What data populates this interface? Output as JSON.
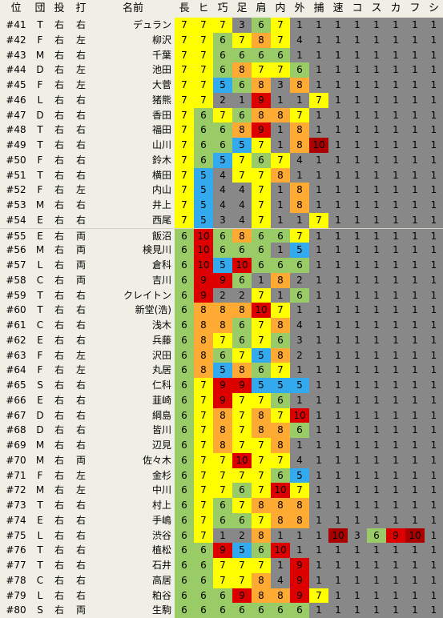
{
  "headers": [
    "位",
    "団",
    "投",
    "打",
    "名前",
    "長",
    "ヒ",
    "巧",
    "足",
    "肩",
    "内",
    "外",
    "捕",
    "速",
    "コ",
    "ス",
    "カ",
    "フ",
    "シ"
  ],
  "colors": {
    "yellow": "#ffff00",
    "green": "#99cc66",
    "blue": "#33aaee",
    "red": "#dd0000",
    "orange": "#ffaa33",
    "gray": "#888888",
    "darkred": "#aa0000",
    "bg": "#f0efe6"
  },
  "players": [
    {
      "no": "#41",
      "team": "T",
      "throws": "右",
      "bats": "右",
      "name": "デュラン",
      "stats": [
        "7",
        "7",
        "7",
        "3",
        "6",
        "7",
        "1",
        "1",
        "1",
        "1",
        "1",
        "1",
        "1",
        "1"
      ]
    },
    {
      "no": "#42",
      "team": "F",
      "throws": "右",
      "bats": "左",
      "name": "柳沢",
      "stats": [
        "7",
        "7",
        "6",
        "7",
        "8",
        "7",
        "4",
        "1",
        "1",
        "1",
        "1",
        "1",
        "1",
        "1"
      ]
    },
    {
      "no": "#43",
      "team": "M",
      "throws": "右",
      "bats": "右",
      "name": "千葉",
      "stats": [
        "7",
        "7",
        "6",
        "6",
        "6",
        "6",
        "1",
        "1",
        "1",
        "1",
        "1",
        "1",
        "1",
        "1"
      ]
    },
    {
      "no": "#44",
      "team": "D",
      "throws": "右",
      "bats": "左",
      "name": "池田",
      "stats": [
        "7",
        "7",
        "6",
        "8",
        "7",
        "7",
        "6",
        "1",
        "1",
        "1",
        "1",
        "1",
        "1",
        "1"
      ]
    },
    {
      "no": "#45",
      "team": "F",
      "throws": "右",
      "bats": "左",
      "name": "大菅",
      "stats": [
        "7",
        "7",
        "5",
        "6",
        "8",
        "3",
        "8",
        "1",
        "1",
        "1",
        "1",
        "1",
        "1",
        "1"
      ]
    },
    {
      "no": "#46",
      "team": "L",
      "throws": "右",
      "bats": "右",
      "name": "猪熊",
      "stats": [
        "7",
        "7",
        "2",
        "1",
        "9",
        "1",
        "1",
        "7",
        "1",
        "1",
        "1",
        "1",
        "1",
        "1"
      ]
    },
    {
      "no": "#47",
      "team": "D",
      "throws": "右",
      "bats": "右",
      "name": "香田",
      "stats": [
        "7",
        "6",
        "7",
        "6",
        "8",
        "8",
        "7",
        "1",
        "1",
        "1",
        "1",
        "1",
        "1",
        "1"
      ]
    },
    {
      "no": "#48",
      "team": "T",
      "throws": "右",
      "bats": "右",
      "name": "福田",
      "stats": [
        "7",
        "6",
        "6",
        "8",
        "9",
        "1",
        "8",
        "1",
        "1",
        "1",
        "1",
        "1",
        "1",
        "1"
      ]
    },
    {
      "no": "#49",
      "team": "T",
      "throws": "右",
      "bats": "右",
      "name": "山川",
      "stats": [
        "7",
        "6",
        "6",
        "5",
        "7",
        "1",
        "8",
        "10",
        "1",
        "1",
        "1",
        "1",
        "1",
        "1"
      ]
    },
    {
      "no": "#50",
      "team": "F",
      "throws": "右",
      "bats": "右",
      "name": "鈴木",
      "stats": [
        "7",
        "6",
        "5",
        "7",
        "6",
        "7",
        "4",
        "1",
        "1",
        "1",
        "1",
        "1",
        "1",
        "1"
      ]
    },
    {
      "no": "#51",
      "team": "T",
      "throws": "右",
      "bats": "右",
      "name": "横田",
      "stats": [
        "7",
        "5",
        "4",
        "7",
        "7",
        "8",
        "1",
        "1",
        "1",
        "1",
        "1",
        "1",
        "1",
        "1"
      ]
    },
    {
      "no": "#52",
      "team": "F",
      "throws": "右",
      "bats": "左",
      "name": "内山",
      "stats": [
        "7",
        "5",
        "4",
        "4",
        "7",
        "1",
        "8",
        "1",
        "1",
        "1",
        "1",
        "1",
        "1",
        "1"
      ]
    },
    {
      "no": "#53",
      "team": "M",
      "throws": "右",
      "bats": "右",
      "name": "井上",
      "stats": [
        "7",
        "5",
        "4",
        "4",
        "7",
        "1",
        "8",
        "1",
        "1",
        "1",
        "1",
        "1",
        "1",
        "1"
      ]
    },
    {
      "no": "#54",
      "team": "E",
      "throws": "右",
      "bats": "右",
      "name": "西尾",
      "stats": [
        "7",
        "5",
        "3",
        "4",
        "7",
        "1",
        "1",
        "7",
        "1",
        "1",
        "1",
        "1",
        "1",
        "1"
      ]
    },
    {
      "no": "#55",
      "team": "E",
      "throws": "右",
      "bats": "両",
      "name": "飯沼",
      "stats": [
        "6",
        "10",
        "6",
        "8",
        "6",
        "6",
        "7",
        "1",
        "1",
        "1",
        "1",
        "1",
        "1",
        "1"
      ]
    },
    {
      "no": "#56",
      "team": "M",
      "throws": "右",
      "bats": "両",
      "name": "検見川",
      "stats": [
        "6",
        "10",
        "6",
        "6",
        "6",
        "1",
        "5",
        "1",
        "1",
        "1",
        "1",
        "1",
        "1",
        "1"
      ]
    },
    {
      "no": "#57",
      "team": "L",
      "throws": "右",
      "bats": "両",
      "name": "倉科",
      "stats": [
        "6",
        "10",
        "5",
        "10",
        "6",
        "6",
        "6",
        "1",
        "1",
        "1",
        "1",
        "1",
        "1",
        "1"
      ]
    },
    {
      "no": "#58",
      "team": "C",
      "throws": "右",
      "bats": "両",
      "name": "吉川",
      "stats": [
        "6",
        "9",
        "9",
        "6",
        "1",
        "8",
        "2",
        "1",
        "1",
        "1",
        "1",
        "1",
        "1",
        "1"
      ]
    },
    {
      "no": "#59",
      "team": "T",
      "throws": "右",
      "bats": "右",
      "name": "クレイトン",
      "stats": [
        "6",
        "9",
        "2",
        "2",
        "7",
        "1",
        "6",
        "1",
        "1",
        "1",
        "1",
        "1",
        "1",
        "1"
      ]
    },
    {
      "no": "#60",
      "team": "T",
      "throws": "右",
      "bats": "右",
      "name": "新堂(浩)",
      "stats": [
        "6",
        "8",
        "8",
        "8",
        "10",
        "7",
        "1",
        "1",
        "1",
        "1",
        "1",
        "1",
        "1",
        "1"
      ]
    },
    {
      "no": "#61",
      "team": "C",
      "throws": "右",
      "bats": "右",
      "name": "浅木",
      "stats": [
        "6",
        "8",
        "8",
        "6",
        "7",
        "8",
        "4",
        "1",
        "1",
        "1",
        "1",
        "1",
        "1",
        "1"
      ]
    },
    {
      "no": "#62",
      "team": "E",
      "throws": "右",
      "bats": "右",
      "name": "兵藤",
      "stats": [
        "6",
        "8",
        "7",
        "6",
        "7",
        "6",
        "3",
        "1",
        "1",
        "1",
        "1",
        "1",
        "1",
        "1"
      ]
    },
    {
      "no": "#63",
      "team": "F",
      "throws": "右",
      "bats": "左",
      "name": "沢田",
      "stats": [
        "6",
        "8",
        "6",
        "7",
        "5",
        "8",
        "2",
        "1",
        "1",
        "1",
        "1",
        "1",
        "1",
        "1"
      ]
    },
    {
      "no": "#64",
      "team": "F",
      "throws": "右",
      "bats": "左",
      "name": "丸居",
      "stats": [
        "6",
        "8",
        "5",
        "8",
        "6",
        "7",
        "1",
        "1",
        "1",
        "1",
        "1",
        "1",
        "1",
        "1"
      ]
    },
    {
      "no": "#65",
      "team": "S",
      "throws": "右",
      "bats": "右",
      "name": "仁科",
      "stats": [
        "6",
        "7",
        "9",
        "9",
        "5",
        "5",
        "5",
        "1",
        "1",
        "1",
        "1",
        "1",
        "1",
        "1"
      ]
    },
    {
      "no": "#66",
      "team": "E",
      "throws": "右",
      "bats": "右",
      "name": "韮崎",
      "stats": [
        "6",
        "7",
        "9",
        "7",
        "7",
        "6",
        "1",
        "1",
        "1",
        "1",
        "1",
        "1",
        "1",
        "1"
      ]
    },
    {
      "no": "#67",
      "team": "D",
      "throws": "右",
      "bats": "右",
      "name": "綱島",
      "stats": [
        "6",
        "7",
        "8",
        "7",
        "8",
        "7",
        "10",
        "1",
        "1",
        "1",
        "1",
        "1",
        "1",
        "1"
      ]
    },
    {
      "no": "#68",
      "team": "D",
      "throws": "右",
      "bats": "右",
      "name": "皆川",
      "stats": [
        "6",
        "7",
        "8",
        "7",
        "8",
        "8",
        "6",
        "1",
        "1",
        "1",
        "1",
        "1",
        "1",
        "1"
      ]
    },
    {
      "no": "#69",
      "team": "M",
      "throws": "右",
      "bats": "右",
      "name": "辺見",
      "stats": [
        "6",
        "7",
        "8",
        "7",
        "7",
        "8",
        "1",
        "1",
        "1",
        "1",
        "1",
        "1",
        "1",
        "1"
      ]
    },
    {
      "no": "#70",
      "team": "M",
      "throws": "右",
      "bats": "両",
      "name": "佐々木",
      "stats": [
        "6",
        "7",
        "7",
        "10",
        "7",
        "7",
        "4",
        "1",
        "1",
        "1",
        "1",
        "1",
        "1",
        "1"
      ]
    },
    {
      "no": "#71",
      "team": "F",
      "throws": "右",
      "bats": "左",
      "name": "金杉",
      "stats": [
        "6",
        "7",
        "7",
        "7",
        "7",
        "6",
        "5",
        "1",
        "1",
        "1",
        "1",
        "1",
        "1",
        "1"
      ]
    },
    {
      "no": "#72",
      "team": "M",
      "throws": "右",
      "bats": "左",
      "name": "中川",
      "stats": [
        "6",
        "7",
        "7",
        "6",
        "7",
        "10",
        "7",
        "1",
        "1",
        "1",
        "1",
        "1",
        "1",
        "1"
      ]
    },
    {
      "no": "#73",
      "team": "T",
      "throws": "右",
      "bats": "右",
      "name": "村上",
      "stats": [
        "6",
        "7",
        "6",
        "7",
        "8",
        "8",
        "8",
        "1",
        "1",
        "1",
        "1",
        "1",
        "1",
        "1"
      ]
    },
    {
      "no": "#74",
      "team": "E",
      "throws": "右",
      "bats": "右",
      "name": "手嶋",
      "stats": [
        "6",
        "7",
        "6",
        "6",
        "7",
        "8",
        "8",
        "1",
        "1",
        "1",
        "1",
        "1",
        "1",
        "1"
      ]
    },
    {
      "no": "#75",
      "team": "L",
      "throws": "右",
      "bats": "右",
      "name": "渋谷",
      "stats": [
        "6",
        "7",
        "1",
        "2",
        "8",
        "1",
        "1",
        "1",
        "10",
        "3",
        "6",
        "9",
        "10",
        "1"
      ]
    },
    {
      "no": "#76",
      "team": "T",
      "throws": "右",
      "bats": "右",
      "name": "植松",
      "stats": [
        "6",
        "6",
        "9",
        "5",
        "6",
        "10",
        "1",
        "1",
        "1",
        "1",
        "1",
        "1",
        "1",
        "1"
      ]
    },
    {
      "no": "#77",
      "team": "T",
      "throws": "右",
      "bats": "右",
      "name": "石井",
      "stats": [
        "6",
        "6",
        "7",
        "7",
        "7",
        "1",
        "9",
        "1",
        "1",
        "1",
        "1",
        "1",
        "1",
        "1"
      ]
    },
    {
      "no": "#78",
      "team": "C",
      "throws": "右",
      "bats": "右",
      "name": "高居",
      "stats": [
        "6",
        "6",
        "7",
        "7",
        "8",
        "4",
        "9",
        "1",
        "1",
        "1",
        "1",
        "1",
        "1",
        "1"
      ]
    },
    {
      "no": "#79",
      "team": "L",
      "throws": "右",
      "bats": "右",
      "name": "粕谷",
      "stats": [
        "6",
        "6",
        "6",
        "9",
        "8",
        "8",
        "9",
        "7",
        "1",
        "1",
        "1",
        "1",
        "1",
        "1"
      ]
    },
    {
      "no": "#80",
      "team": "S",
      "throws": "右",
      "bats": "両",
      "name": "生駒",
      "stats": [
        "6",
        "6",
        "6",
        "6",
        "6",
        "6",
        "6",
        "1",
        "1",
        "1",
        "1",
        "1",
        "1",
        "1"
      ]
    }
  ]
}
